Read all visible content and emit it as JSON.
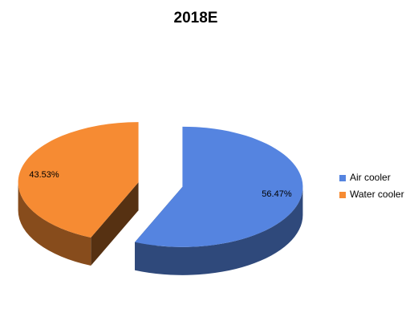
{
  "chart_data": {
    "type": "pie3d",
    "title": "2018E",
    "categories": [
      "Air cooler",
      "Water cooler"
    ],
    "values": [
      56.47,
      43.53
    ],
    "value_labels": [
      "56.47%",
      "43.53%"
    ],
    "colors": [
      "#5584e0",
      "#f68b33"
    ],
    "legend": "right"
  }
}
